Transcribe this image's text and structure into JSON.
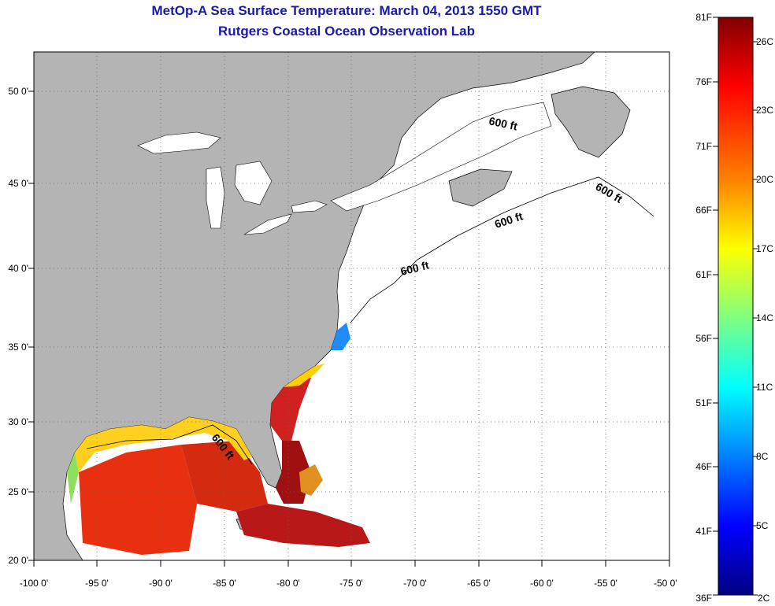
{
  "header": {
    "title": "MetOp-A Sea Surface Temperature:  March 04, 2013 1550 GMT",
    "subtitle": "Rutgers Coastal Ocean Observation Lab"
  },
  "map": {
    "lon_ticks": [
      "-100 0'",
      "-95 0'",
      "-90 0'",
      "-85 0'",
      "-80 0'",
      "-75 0'",
      "-70 0'",
      "-65 0'",
      "-60 0'",
      "-55 0'",
      "-50 0'"
    ],
    "lat_ticks": [
      "20 0'",
      "25 0'",
      "30 0'",
      "35 0'",
      "40 0'",
      "45 0'",
      "50 0'"
    ],
    "isobath_label": "600 ft",
    "colors": {
      "land": "#b4b4b4",
      "ocean": "#ffffff",
      "grid": "#555555"
    }
  },
  "colorbar": {
    "fahrenheit_labels": [
      "81F",
      "76F",
      "71F",
      "66F",
      "61F",
      "56F",
      "51F",
      "46F",
      "41F",
      "36F"
    ],
    "celsius_labels": [
      "26C",
      "23C",
      "20C",
      "17C",
      "14C",
      "11C",
      "8C",
      "5C",
      "2C"
    ],
    "colors": [
      "#800000",
      "#ff0000",
      "#ff8000",
      "#ffff00",
      "#80ff80",
      "#00ffff",
      "#0080ff",
      "#0000ff",
      "#000080"
    ]
  }
}
